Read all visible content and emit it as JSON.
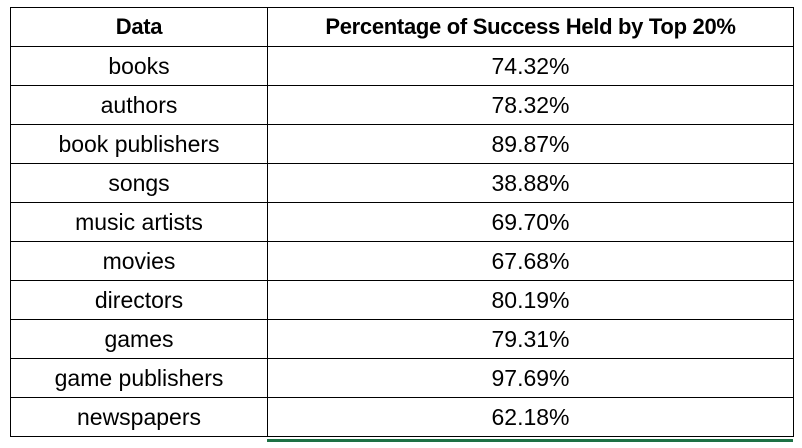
{
  "table": {
    "headers": {
      "data": "Data",
      "percentage": "Percentage of Success Held by Top 20%"
    },
    "rows": [
      {
        "data": "books",
        "percentage": "74.32%"
      },
      {
        "data": "authors",
        "percentage": "78.32%"
      },
      {
        "data": "book publishers",
        "percentage": "89.87%"
      },
      {
        "data": "songs",
        "percentage": "38.88%"
      },
      {
        "data": "music artists",
        "percentage": "69.70%"
      },
      {
        "data": "movies",
        "percentage": "67.68%"
      },
      {
        "data": "directors",
        "percentage": "80.19%"
      },
      {
        "data": "games",
        "percentage": "79.31%"
      },
      {
        "data": "game publishers",
        "percentage": "97.69%"
      },
      {
        "data": "newspapers",
        "percentage": "62.18%"
      }
    ]
  },
  "colors": {
    "grid_border": "#000000",
    "selection_accent": "#1e7145",
    "background": "#ffffff"
  }
}
